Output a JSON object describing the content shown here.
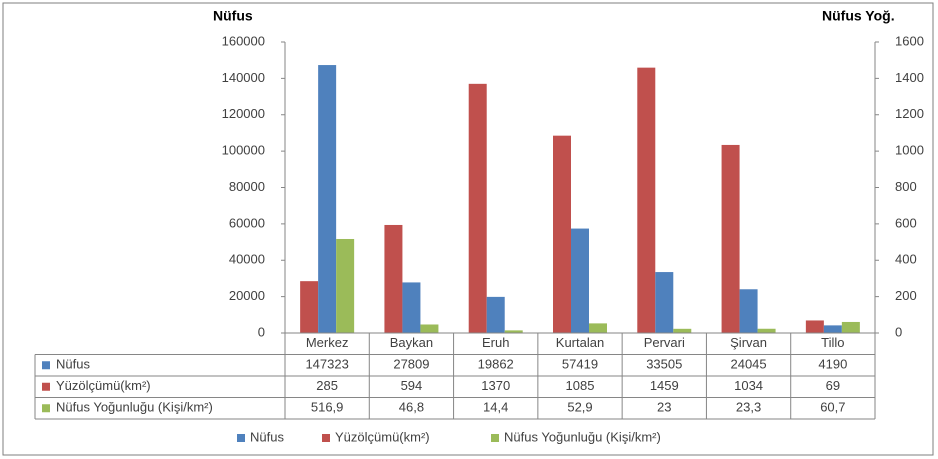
{
  "chart_data": {
    "type": "bar",
    "y_axis_label": "Nüfus",
    "y2_axis_label": "Nüfus Yoğ.",
    "categories": [
      "Merkez",
      "Baykan",
      "Eruh",
      "Kurtalan",
      "Pervari",
      "Şirvan",
      "Tillo"
    ],
    "series": [
      {
        "name": "Nüfus",
        "color": "#4f81bd",
        "values": [
          147323,
          27809,
          19862,
          57419,
          33505,
          24045,
          4190
        ]
      },
      {
        "name": "Yüzölçümü(km²)",
        "color": "#c0504d",
        "axis": "y2",
        "values": [
          285,
          594,
          1370,
          1085,
          1459,
          1034,
          69
        ]
      },
      {
        "name": "Nüfus Yoğunluğu (Kişi/km²)",
        "color": "#9bbb59",
        "axis": "y2",
        "values": [
          516.9,
          46.8,
          14.4,
          52.9,
          23,
          23.3,
          60.7
        ],
        "value_labels": [
          "516,9",
          "46,8",
          "14,4",
          "52,9",
          "23",
          "23,3",
          "60,7"
        ]
      }
    ],
    "ylim": [
      0,
      160000
    ],
    "yticks": [
      0,
      20000,
      40000,
      60000,
      80000,
      100000,
      120000,
      140000,
      160000
    ],
    "y2lim": [
      0,
      1600
    ],
    "y2ticks": [
      0,
      200,
      400,
      600,
      800,
      1000,
      1200,
      1400,
      1600
    ],
    "legend": "bottom"
  }
}
